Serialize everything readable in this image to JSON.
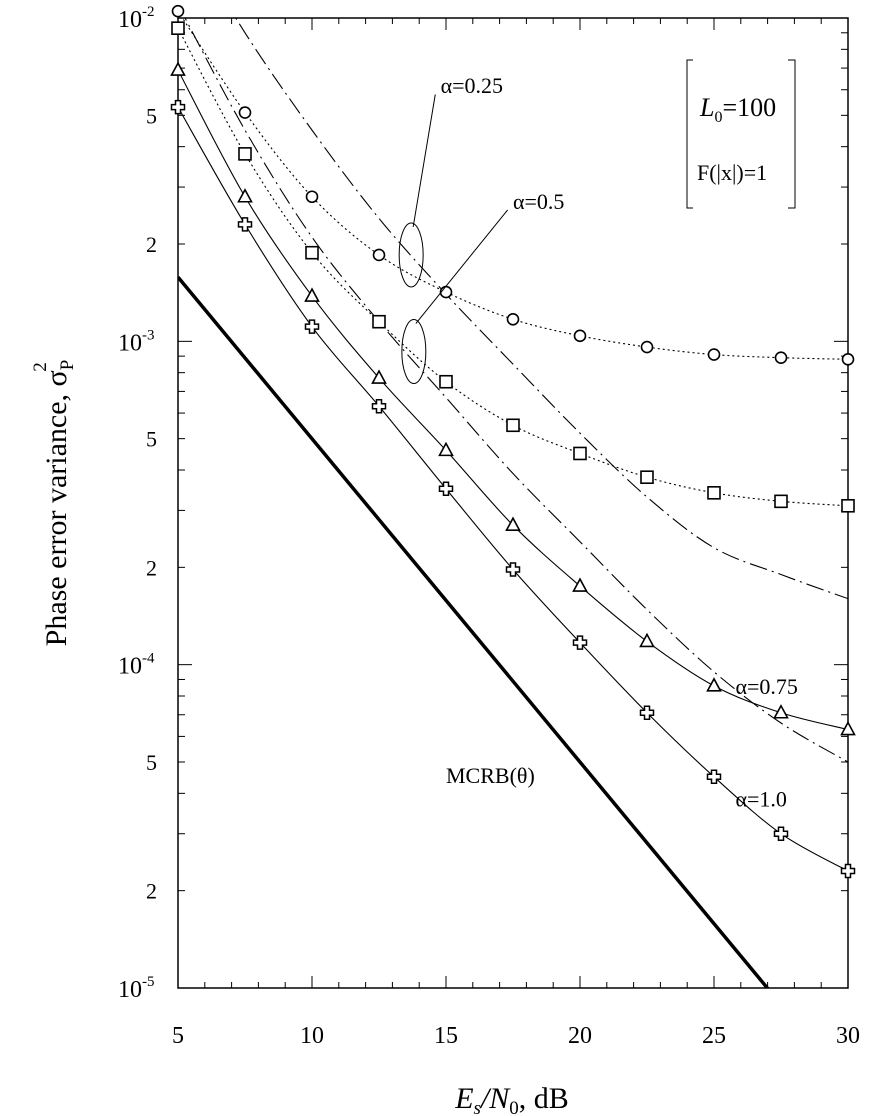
{
  "chart_data": {
    "type": "line",
    "xlabel": {
      "e": "E",
      "es": "s",
      "slash": "/",
      "n": "N",
      "ns": "0",
      "unit": ",  dB"
    },
    "ylabel": {
      "text": "Phase error variance, ",
      "sigma": "σ",
      "sub": "P",
      "sup": "2"
    },
    "x_scale": "linear",
    "y_scale": "log",
    "xlim": [
      5,
      30
    ],
    "ylim": [
      1e-05,
      0.01
    ],
    "x_ticks": [
      5,
      10,
      15,
      20,
      25,
      30
    ],
    "x_tick_labels": [
      "5",
      "10",
      "15",
      "20",
      "25",
      "30"
    ],
    "y_decades": [
      {
        "value": 0.01,
        "base": "10",
        "exp": "-2"
      },
      {
        "value": 0.001,
        "base": "10",
        "exp": "-3"
      },
      {
        "value": 0.0001,
        "base": "10",
        "exp": "-4"
      },
      {
        "value": 1e-05,
        "base": "10",
        "exp": "-5"
      }
    ],
    "y_minor_labels": [
      {
        "value": 0.005,
        "label": "5"
      },
      {
        "value": 0.002,
        "label": "2"
      },
      {
        "value": 0.0005,
        "label": "5"
      },
      {
        "value": 0.0002,
        "label": "2"
      },
      {
        "value": 5e-05,
        "label": "5"
      },
      {
        "value": 2e-05,
        "label": "2"
      }
    ],
    "grid": false,
    "legend_box": {
      "l0_main": "L",
      "l0_sub": "0",
      "l0_value": "=100",
      "f_text": "F(|x|)=1"
    },
    "series": [
      {
        "name": "α=0.25",
        "marker": "circle",
        "line": "dotted",
        "x": [
          5,
          7.5,
          10,
          12.5,
          15,
          17.5,
          20,
          22.5,
          25,
          27.5,
          30
        ],
        "y": [
          0.0105,
          0.0051,
          0.0028,
          0.00185,
          0.00142,
          0.00117,
          0.00104,
          0.00096,
          0.00091,
          0.00089,
          0.00088
        ]
      },
      {
        "name": "α=0.5",
        "marker": "square",
        "line": "dotted",
        "x": [
          5,
          7.5,
          10,
          12.5,
          15,
          17.5,
          20,
          22.5,
          25,
          27.5,
          30
        ],
        "y": [
          0.0093,
          0.0038,
          0.00188,
          0.00115,
          0.00075,
          0.00055,
          0.00045,
          0.00038,
          0.00034,
          0.00032,
          0.00031
        ]
      },
      {
        "name": "α=0.75",
        "marker": "triangle",
        "line": "solid",
        "x": [
          5,
          7.5,
          10,
          12.5,
          15,
          17.5,
          20,
          22.5,
          25,
          27.5,
          30
        ],
        "y": [
          0.0069,
          0.0028,
          0.00138,
          0.00077,
          0.00046,
          0.00027,
          0.000175,
          0.000118,
          8.6e-05,
          7.1e-05,
          6.3e-05
        ]
      },
      {
        "name": "α=1.0",
        "marker": "plus",
        "line": "solid",
        "x": [
          5,
          7.5,
          10,
          12.5,
          15,
          17.5,
          20,
          22.5,
          25,
          27.5,
          30
        ],
        "y": [
          0.0053,
          0.0023,
          0.00111,
          0.00063,
          0.00035,
          0.000197,
          0.000117,
          7.1e-05,
          4.5e-05,
          3e-05,
          2.3e-05
        ]
      },
      {
        "name": "",
        "marker": "none",
        "line": "dashdot",
        "x": [
          5,
          7.5,
          10,
          12.5,
          15,
          17.5,
          20,
          22.5,
          25,
          27.5,
          30
        ],
        "y": [
          0.02,
          0.009,
          0.0045,
          0.0024,
          0.0014,
          0.00085,
          0.00052,
          0.00033,
          0.00023,
          0.00019,
          0.00016
        ]
      },
      {
        "name": "",
        "marker": "none",
        "line": "dashdot",
        "x": [
          5,
          7.5,
          10,
          12.5,
          15,
          17.5,
          20,
          22.5,
          25,
          27.5,
          30
        ],
        "y": [
          0.011,
          0.0045,
          0.0021,
          0.00115,
          0.00067,
          0.00039,
          0.00024,
          0.000148,
          9.5e-05,
          6.6e-05,
          5e-05
        ]
      },
      {
        "name": "MCRB(θ)",
        "marker": "none",
        "line": "thick",
        "x": [
          5,
          30
        ],
        "y": [
          0.00158,
          5e-06
        ]
      }
    ],
    "annotations": [
      {
        "text": "α=0.25",
        "x": 14.8,
        "y": 0.0062
      },
      {
        "text": "α=0.5",
        "x": 17.5,
        "y": 0.00272
      },
      {
        "text": "α=0.75",
        "x": 25.8,
        "y": 8.6e-05
      },
      {
        "text": "α=1.0",
        "x": 25.8,
        "y": 3.85e-05
      },
      {
        "text": "MCRB(θ)",
        "x": 15,
        "y": 4.55e-05
      }
    ]
  }
}
